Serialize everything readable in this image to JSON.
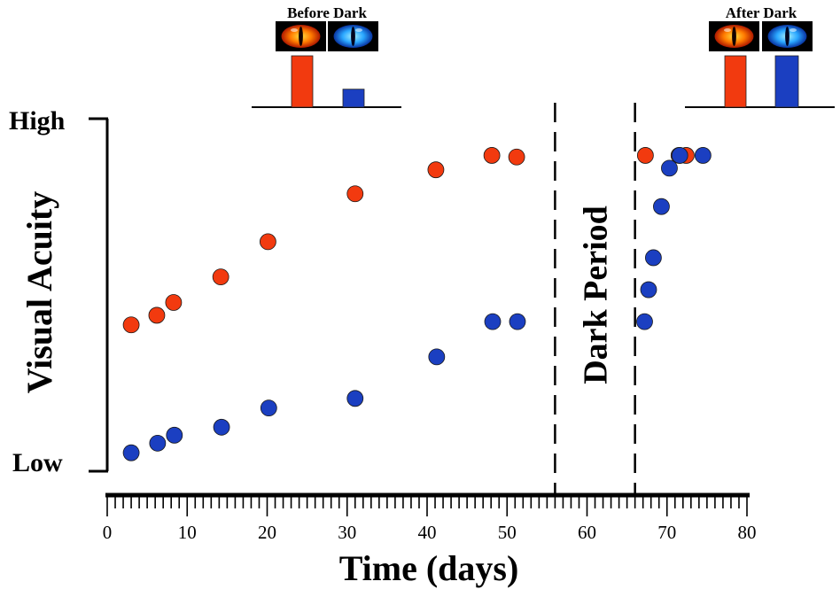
{
  "chart_data": {
    "type": "scatter",
    "title": "",
    "xlabel": "Time (days)",
    "ylabel": "Visual Acuity",
    "xlim": [
      0,
      80
    ],
    "ylim": [
      0,
      100
    ],
    "x_ticks": [
      0,
      10,
      20,
      30,
      40,
      50,
      60,
      70,
      80
    ],
    "y_level_labels": {
      "high": "High",
      "low": "Low"
    },
    "grid": false,
    "colors": {
      "red": "#f23a0f",
      "blue": "#1b3fc1"
    },
    "series": [
      {
        "color": "red",
        "points": [
          {
            "x": 3,
            "y": 43
          },
          {
            "x": 6.2,
            "y": 46
          },
          {
            "x": 8.3,
            "y": 50
          },
          {
            "x": 14.2,
            "y": 58
          },
          {
            "x": 20.1,
            "y": 69
          },
          {
            "x": 31,
            "y": 84
          },
          {
            "x": 41.1,
            "y": 91.5
          },
          {
            "x": 48.1,
            "y": 96
          },
          {
            "x": 51.2,
            "y": 95.5
          },
          {
            "x": 67.3,
            "y": 96
          },
          {
            "x": 71.5,
            "y": 96
          },
          {
            "x": 72.4,
            "y": 96
          }
        ]
      },
      {
        "color": "blue",
        "points": [
          {
            "x": 3,
            "y": 3
          },
          {
            "x": 6.3,
            "y": 6
          },
          {
            "x": 8.4,
            "y": 8.5
          },
          {
            "x": 14.3,
            "y": 11
          },
          {
            "x": 20.2,
            "y": 17
          },
          {
            "x": 31,
            "y": 20
          },
          {
            "x": 41.2,
            "y": 33
          },
          {
            "x": 48.2,
            "y": 44
          },
          {
            "x": 51.3,
            "y": 44
          },
          {
            "x": 67.2,
            "y": 44
          },
          {
            "x": 67.7,
            "y": 54
          },
          {
            "x": 68.3,
            "y": 64
          },
          {
            "x": 69.3,
            "y": 80
          },
          {
            "x": 70.3,
            "y": 92
          },
          {
            "x": 71.6,
            "y": 96
          },
          {
            "x": 74.5,
            "y": 96
          }
        ]
      }
    ],
    "dark_period": {
      "start": 56,
      "end": 66,
      "label": "Dark Period"
    },
    "insets": [
      {
        "title": "Before Dark",
        "bars": [
          {
            "color": "red",
            "value": 100
          },
          {
            "color": "blue",
            "value": 35
          }
        ]
      },
      {
        "title": "After Dark",
        "bars": [
          {
            "color": "red",
            "value": 100
          },
          {
            "color": "blue",
            "value": 100
          }
        ]
      }
    ]
  }
}
